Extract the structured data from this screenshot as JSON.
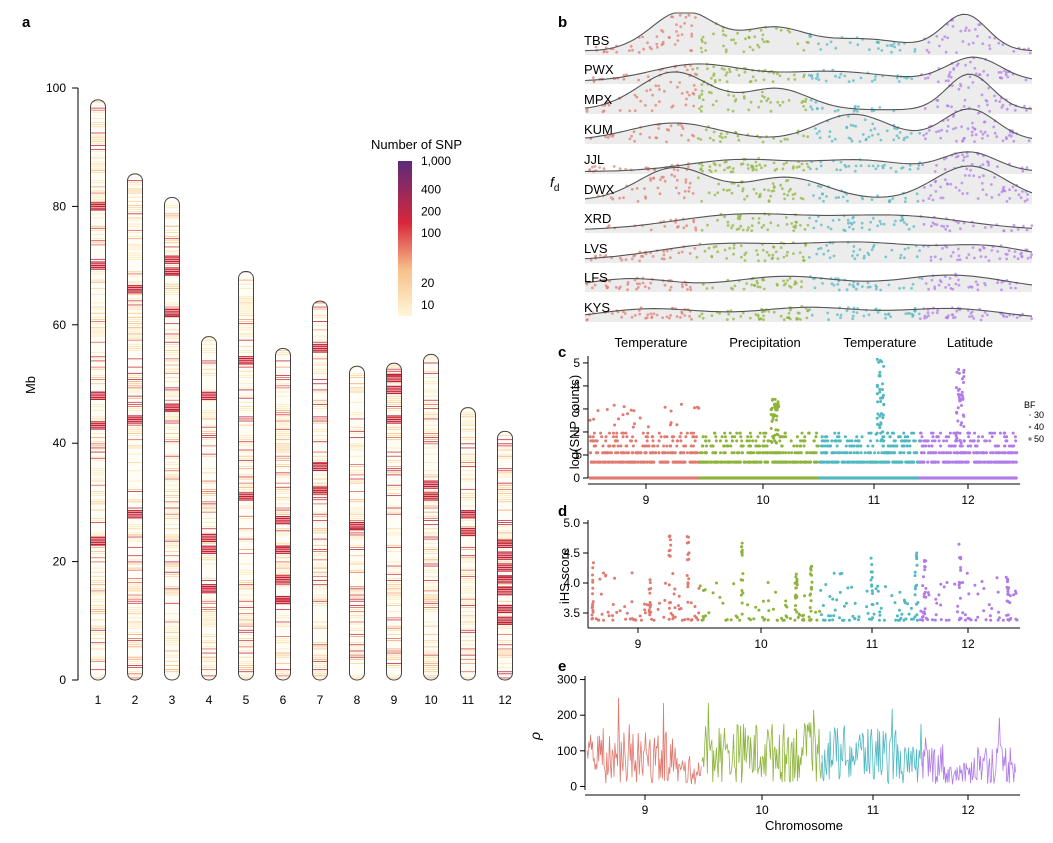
{
  "panels": {
    "a": "a",
    "b": "b",
    "c": "c",
    "d": "d",
    "e": "e"
  },
  "colors": {
    "chr9": "#e07a6f",
    "chr10": "#8db33a",
    "chr11": "#4fb8c0",
    "chr12": "#b07be8",
    "ridge_fill": "#ececec",
    "ridge_line": "#555555"
  },
  "chart_data": [
    {
      "id": "a",
      "type": "heatmap",
      "ylabel": "Mb",
      "ylim": [
        0,
        100
      ],
      "yticks": [
        0,
        20,
        40,
        60,
        80,
        100
      ],
      "chromosomes": [
        "1",
        "2",
        "3",
        "4",
        "5",
        "6",
        "7",
        "8",
        "9",
        "10",
        "11",
        "12"
      ],
      "lengths_mb": [
        98,
        85.5,
        81.5,
        58,
        69,
        56,
        64,
        53,
        53.5,
        55,
        46,
        42
      ],
      "hotspots_mb": [
        [
          23.5,
          43,
          48,
          70,
          80
        ],
        [
          28,
          44,
          66
        ],
        [
          46,
          62,
          69,
          71
        ],
        [
          15.5,
          22,
          24,
          48
        ],
        [
          31,
          54
        ],
        [
          13.5,
          17,
          22,
          27
        ],
        [
          32,
          36,
          56
        ],
        [
          26
        ],
        [
          44,
          49,
          51
        ],
        [
          31,
          33
        ],
        [
          25,
          28
        ],
        [
          10,
          12,
          15,
          17,
          19,
          21,
          23
        ]
      ],
      "legend": {
        "title": "Number of SNP",
        "ticks": [
          "1,000",
          "400",
          "200",
          "100",
          "20",
          "10"
        ],
        "tick_values": [
          1000,
          400,
          200,
          100,
          20,
          10
        ]
      }
    },
    {
      "id": "b",
      "type": "area",
      "ylabel": "f",
      "ylabel_sub": "d",
      "populations": [
        "TBS",
        "PWX",
        "MPX",
        "KUM",
        "JJL",
        "DWX",
        "XRD",
        "LVS",
        "LFS",
        "KYS"
      ],
      "x_chromosomes": [
        "9",
        "10",
        "11",
        "12"
      ]
    },
    {
      "id": "c",
      "type": "scatter",
      "ylabel": "log(SNP counts)",
      "ylim": [
        0,
        5.3
      ],
      "yticks": [
        0,
        1,
        2,
        3,
        4,
        5
      ],
      "x_chromosomes": [
        "9",
        "10",
        "11",
        "12"
      ],
      "group_labels": [
        "Temperature",
        "Precipitation",
        "Temperature",
        "Latitude"
      ],
      "levels": [
        0,
        0.69,
        1.1,
        1.39,
        1.61,
        1.79,
        1.95,
        2.08,
        2.2
      ],
      "peaks": [
        {
          "chromosome": "10",
          "max": 3.5
        },
        {
          "chromosome": "11",
          "max": 5.2
        },
        {
          "chromosome": "12",
          "max": 4.8
        }
      ],
      "legend": {
        "title": "BF",
        "entries": [
          "30",
          "40",
          "50"
        ]
      }
    },
    {
      "id": "d",
      "type": "scatter",
      "ylabel": "iHS score",
      "ylim": [
        3.35,
        5.05
      ],
      "yticks": [
        3.5,
        4.0,
        4.5,
        5.0
      ],
      "ytick_labels": [
        "3.5",
        "4.0",
        "4.5",
        "5.0"
      ],
      "x_chromosomes": [
        "9",
        "10",
        "11",
        "12"
      ]
    },
    {
      "id": "e",
      "type": "line",
      "ylabel": "ρ",
      "xlabel": "Chromosome",
      "ylim": [
        -10,
        310
      ],
      "yticks": [
        0,
        100,
        200,
        300
      ],
      "x_chromosomes": [
        "9",
        "10",
        "11",
        "12"
      ],
      "mean_rho": [
        {
          "chromosome": "9",
          "mean": 80
        },
        {
          "chromosome": "10",
          "mean": 95
        },
        {
          "chromosome": "11",
          "mean": 90
        },
        {
          "chromosome": "12",
          "mean": 65
        }
      ]
    }
  ]
}
